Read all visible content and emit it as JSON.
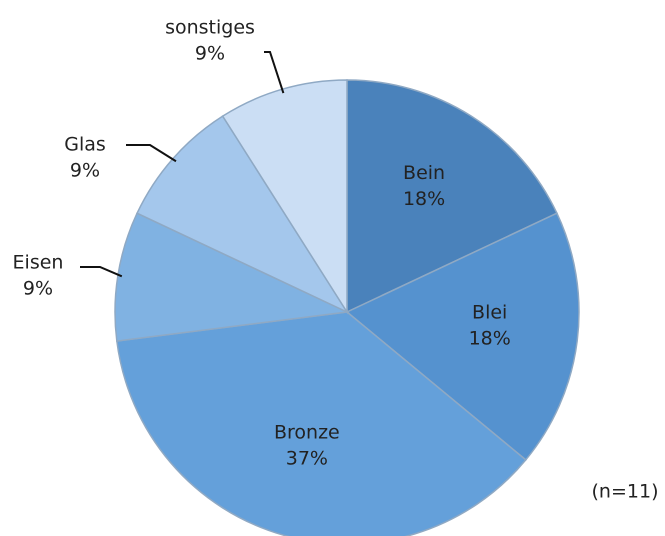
{
  "chart_data": {
    "type": "pie",
    "categories": [
      "Bein",
      "Blei",
      "Bronze",
      "Eisen",
      "Glas",
      "sonstiges"
    ],
    "values": [
      18,
      18,
      37,
      9,
      9,
      9
    ],
    "value_labels": [
      "18%",
      "18%",
      "37%",
      "9%",
      "9%",
      "9%"
    ],
    "colors": [
      "#4a82bb",
      "#5592cf",
      "#64a0da",
      "#80b2e2",
      "#a4c7ec",
      "#cbdef4"
    ],
    "annotation": "(n=11)"
  }
}
